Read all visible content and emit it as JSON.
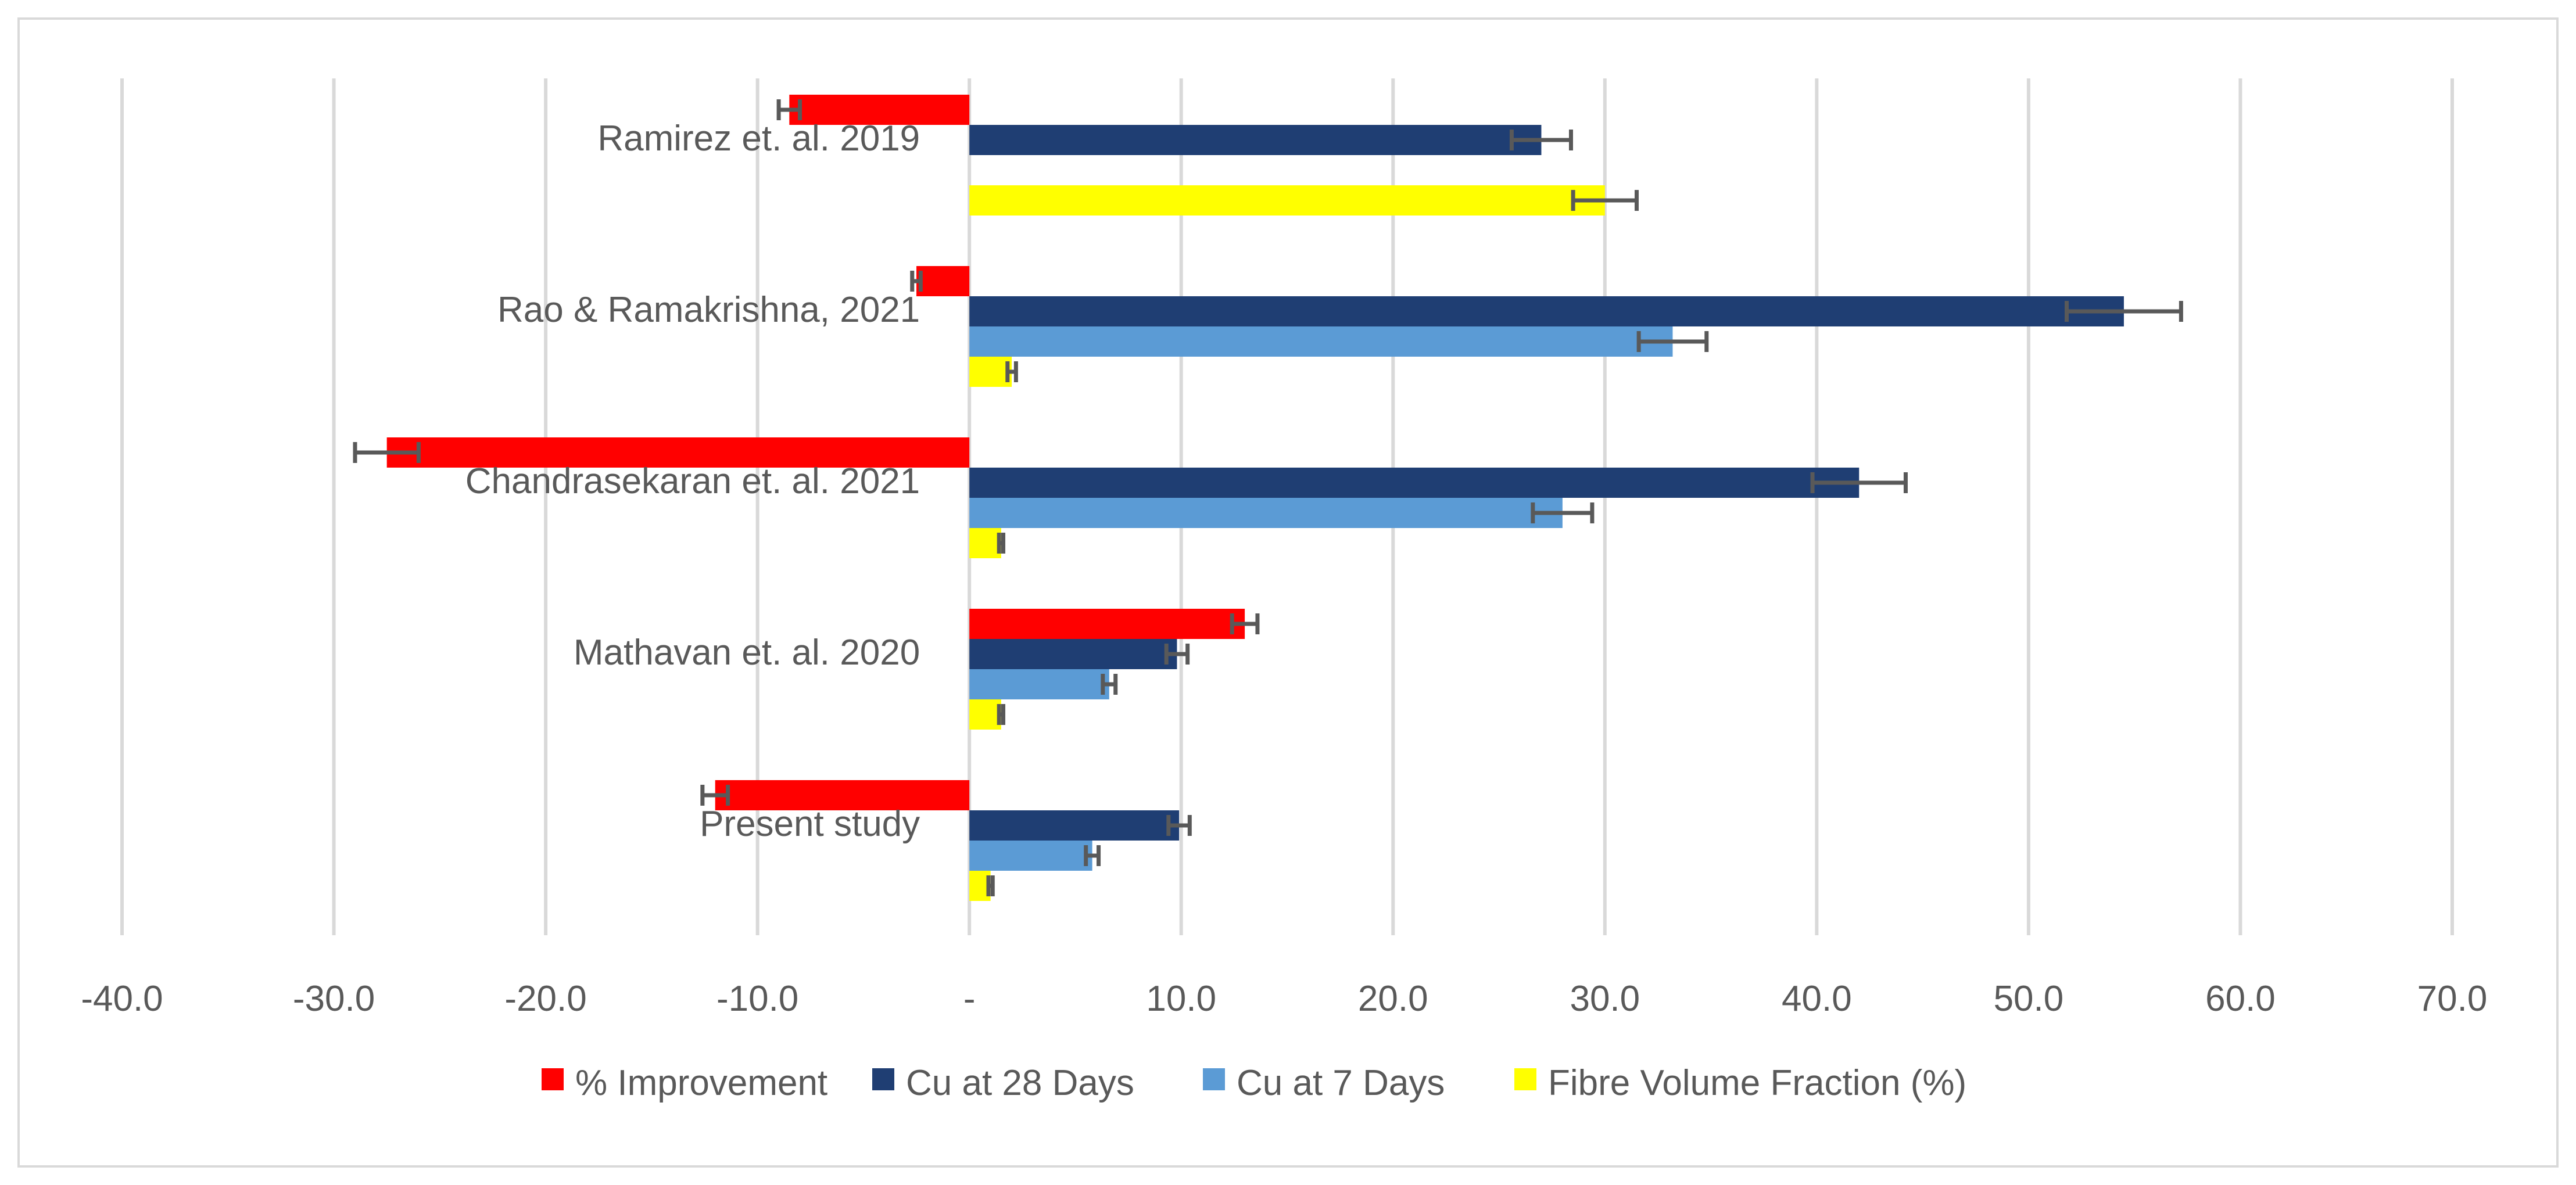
{
  "chart_data": {
    "type": "bar",
    "orientation": "horizontal",
    "title": "",
    "xlabel": "",
    "ylabel": "",
    "xlim": [
      -40,
      70
    ],
    "x_ticks": [
      -40,
      -30,
      -20,
      -10,
      0,
      10,
      20,
      30,
      40,
      50,
      60,
      70
    ],
    "x_tick_labels": [
      "-40.0",
      "-30.0",
      "-20.0",
      "-10.0",
      "-",
      "10.0",
      "20.0",
      "30.0",
      "40.0",
      "50.0",
      "60.0",
      "70.0"
    ],
    "grid": true,
    "legend_position": "bottom",
    "categories": [
      "Ramirez et. al. 2019",
      "Rao & Ramakrishna, 2021",
      "Chandrasekaran et. al. 2021",
      "Mathavan et. al. 2020",
      "Present study"
    ],
    "series": [
      {
        "name": "% Improvement",
        "color": "#ff0000",
        "values": [
          -8.5,
          -2.5,
          -27.5,
          13.0,
          -12.0
        ],
        "errors": [
          0.5,
          0.2,
          1.5,
          0.6,
          0.6
        ]
      },
      {
        "name": "Cu at 28 Days",
        "color": "#1f3e73",
        "values": [
          27.0,
          54.5,
          42.0,
          9.8,
          9.9
        ],
        "errors": [
          1.4,
          2.7,
          2.2,
          0.5,
          0.5
        ]
      },
      {
        "name": "Cu at 7 Days",
        "color": "#5b9bd5",
        "values": [
          null,
          33.2,
          28.0,
          6.6,
          5.8
        ],
        "errors": [
          null,
          1.6,
          1.4,
          0.3,
          0.3
        ]
      },
      {
        "name": "Fibre Volume Fraction (%)",
        "color": "#ffff00",
        "values": [
          30.0,
          2.0,
          1.5,
          1.5,
          1.0
        ],
        "errors": [
          1.5,
          0.2,
          0.1,
          0.1,
          0.1
        ]
      }
    ]
  }
}
